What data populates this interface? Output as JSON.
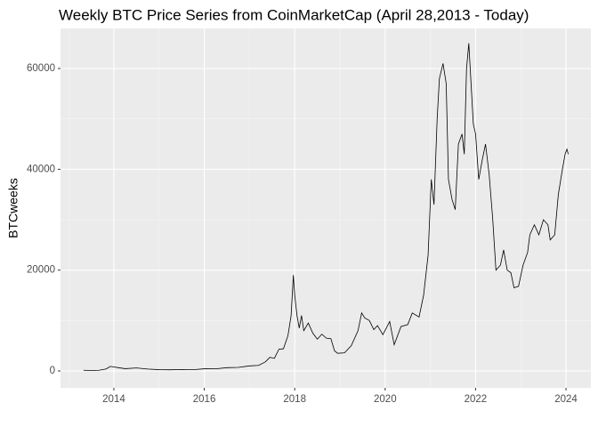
{
  "chart_data": {
    "type": "line",
    "title": "Weekly BTC Price Series from CoinMarketCap (April 28,2013 - Today)",
    "y_label": "BTCweeks",
    "x": [
      2013.33,
      2013.5,
      2013.67,
      2013.83,
      2013.92,
      2014.0,
      2014.1,
      2014.25,
      2014.5,
      2014.75,
      2015.0,
      2015.25,
      2015.5,
      2015.75,
      2016.0,
      2016.25,
      2016.5,
      2016.75,
      2017.0,
      2017.2,
      2017.35,
      2017.45,
      2017.55,
      2017.65,
      2017.75,
      2017.85,
      2017.92,
      2017.97,
      2018.0,
      2018.05,
      2018.1,
      2018.15,
      2018.2,
      2018.3,
      2018.4,
      2018.5,
      2018.6,
      2018.7,
      2018.8,
      2018.88,
      2018.95,
      2019.1,
      2019.25,
      2019.4,
      2019.48,
      2019.55,
      2019.65,
      2019.75,
      2019.83,
      2019.95,
      2020.1,
      2020.2,
      2020.35,
      2020.5,
      2020.6,
      2020.75,
      2020.85,
      2020.95,
      2021.02,
      2021.08,
      2021.15,
      2021.2,
      2021.28,
      2021.35,
      2021.4,
      2021.48,
      2021.55,
      2021.62,
      2021.7,
      2021.75,
      2021.8,
      2021.85,
      2021.9,
      2021.95,
      2022.0,
      2022.07,
      2022.15,
      2022.22,
      2022.3,
      2022.38,
      2022.45,
      2022.55,
      2022.62,
      2022.7,
      2022.78,
      2022.85,
      2022.95,
      2023.05,
      2023.15,
      2023.2,
      2023.3,
      2023.4,
      2023.5,
      2023.6,
      2023.65,
      2023.75,
      2023.83,
      2023.92,
      2023.98,
      2024.02,
      2024.05
    ],
    "series": [
      {
        "name": "BTCweeks",
        "color": "#000000",
        "values": [
          130,
          90,
          130,
          400,
          900,
          800,
          650,
          450,
          600,
          380,
          250,
          230,
          280,
          240,
          430,
          420,
          650,
          700,
          1000,
          1100,
          1800,
          2700,
          2500,
          4300,
          4400,
          7000,
          11000,
          19000,
          15000,
          11000,
          8500,
          11000,
          8000,
          9500,
          7500,
          6300,
          7300,
          6500,
          6400,
          4000,
          3500,
          3600,
          5000,
          8000,
          11500,
          10500,
          10000,
          8200,
          9000,
          7200,
          9800,
          5200,
          8800,
          9200,
          11500,
          10700,
          15000,
          23000,
          38000,
          33000,
          50000,
          58000,
          61000,
          57000,
          38000,
          34000,
          32000,
          45000,
          47000,
          43000,
          60000,
          65000,
          57000,
          49000,
          47000,
          38000,
          42000,
          45000,
          39000,
          30000,
          20000,
          21000,
          24000,
          20000,
          19500,
          16500,
          16800,
          21000,
          23500,
          27000,
          29000,
          27000,
          30000,
          29000,
          26000,
          27000,
          35000,
          40000,
          43000,
          44000,
          43000
        ]
      }
    ],
    "xlim": [
      2012.82,
      2024.55
    ],
    "xticks": [
      2014,
      2016,
      2018,
      2020,
      2022,
      2024
    ],
    "ylim": [
      -3353,
      67941
    ],
    "yticks": [
      0,
      20000,
      40000,
      60000
    ],
    "grid": true
  }
}
